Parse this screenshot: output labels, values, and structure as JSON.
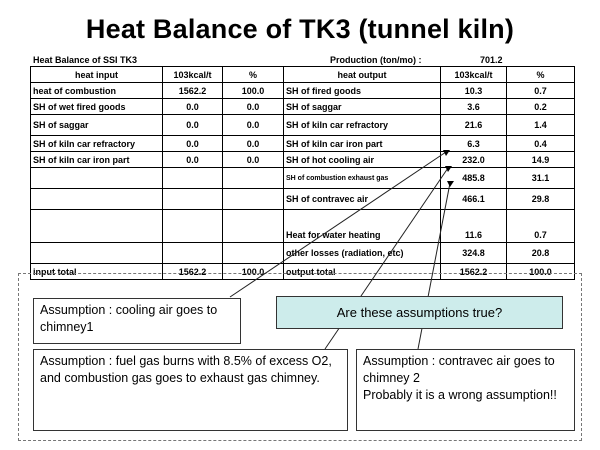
{
  "title": "Heat Balance of TK3 (tunnel kiln)",
  "table_caption": "Heat Balance of SSI TK3",
  "production_label": "Production (ton/mo) :",
  "production_value": "701.2",
  "headers": [
    "heat input",
    "103kcal/t",
    "%",
    "heat output",
    "103kcal/t",
    "%"
  ],
  "rows": [
    [
      "heat of combustion",
      "1562.2",
      "100.0",
      "SH of fired goods",
      "10.3",
      "0.7"
    ],
    [
      "SH of wet fired goods",
      "0.0",
      "0.0",
      "SH of saggar",
      "3.6",
      "0.2"
    ],
    [
      "SH of saggar",
      "0.0",
      "0.0",
      "SH of kiln car refractory",
      "21.6",
      "1.4"
    ],
    [
      "SH of kiln car refractory",
      "0.0",
      "0.0",
      "SH of kiln car iron part",
      "6.3",
      "0.4"
    ],
    [
      "SH of kiln car iron part",
      "0.0",
      "0.0",
      "SH of hot cooling air",
      "232.0",
      "14.9"
    ],
    [
      "",
      "",
      "",
      "SH of combustion exhaust gas",
      "485.8",
      "31.1"
    ],
    [
      "",
      "",
      "",
      "SH of contravec air",
      "466.1",
      "29.8"
    ],
    [
      "",
      "",
      "",
      "Heat for water heating",
      "11.6",
      "0.7"
    ],
    [
      "",
      "",
      "",
      "other losses (radiation, etc)",
      "324.8",
      "20.8"
    ],
    [
      "input total",
      "1562.2",
      "100.0",
      "output total",
      "1562.2",
      "100.0"
    ]
  ],
  "notes": {
    "cooling_air": "Assumption : cooling air goes to chimney1",
    "fuel_gas": "Assumption : fuel gas burns with 8.5% of excess O2, and combustion gas goes to exhaust gas chimney.",
    "contravec_line1": "Assumption : contravec air goes to chimney 2",
    "contravec_line2": "Probably it is a wrong assumption!!"
  },
  "question": "Are these assumptions true?",
  "colors": {
    "question_bg": "#cdeceb",
    "border": "#333333"
  }
}
